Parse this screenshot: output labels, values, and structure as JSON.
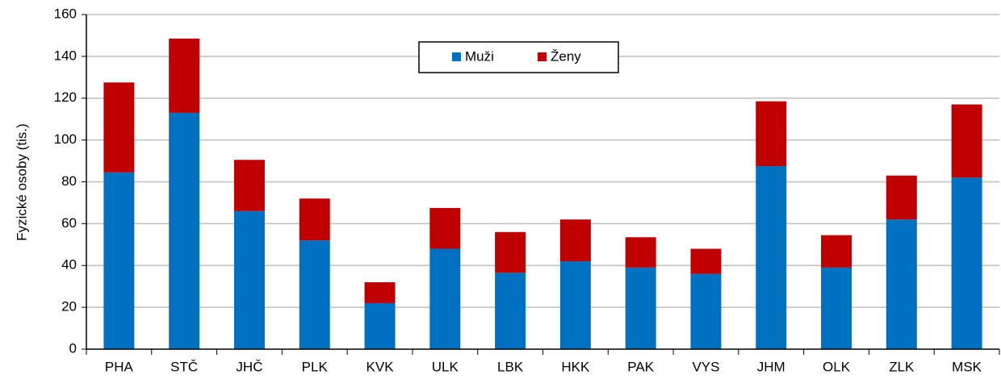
{
  "chart_data": {
    "type": "stacked_bar",
    "y_label": "Fyzické osoby (tis.)",
    "categories": [
      "PHA",
      "STČ",
      "JHČ",
      "PLK",
      "KVK",
      "ULK",
      "LBK",
      "HKK",
      "PAK",
      "VYS",
      "JHM",
      "OLK",
      "ZLK",
      "MSK"
    ],
    "series": [
      {
        "name": "Muži",
        "color": "#0070c0",
        "values": [
          84.5,
          113,
          66,
          52,
          22,
          48,
          36.5,
          42,
          39,
          36,
          87.5,
          39,
          62,
          82
        ]
      },
      {
        "name": "Ženy",
        "color": "#c00000",
        "values": [
          43,
          35.5,
          24.5,
          20,
          10,
          19.5,
          19.5,
          20,
          14.5,
          12,
          31,
          15.5,
          21,
          35
        ]
      }
    ],
    "ylim": [
      0,
      160
    ],
    "yticks": [
      0,
      20,
      40,
      60,
      80,
      100,
      120,
      140,
      160
    ],
    "grid": true,
    "legend": "top"
  }
}
